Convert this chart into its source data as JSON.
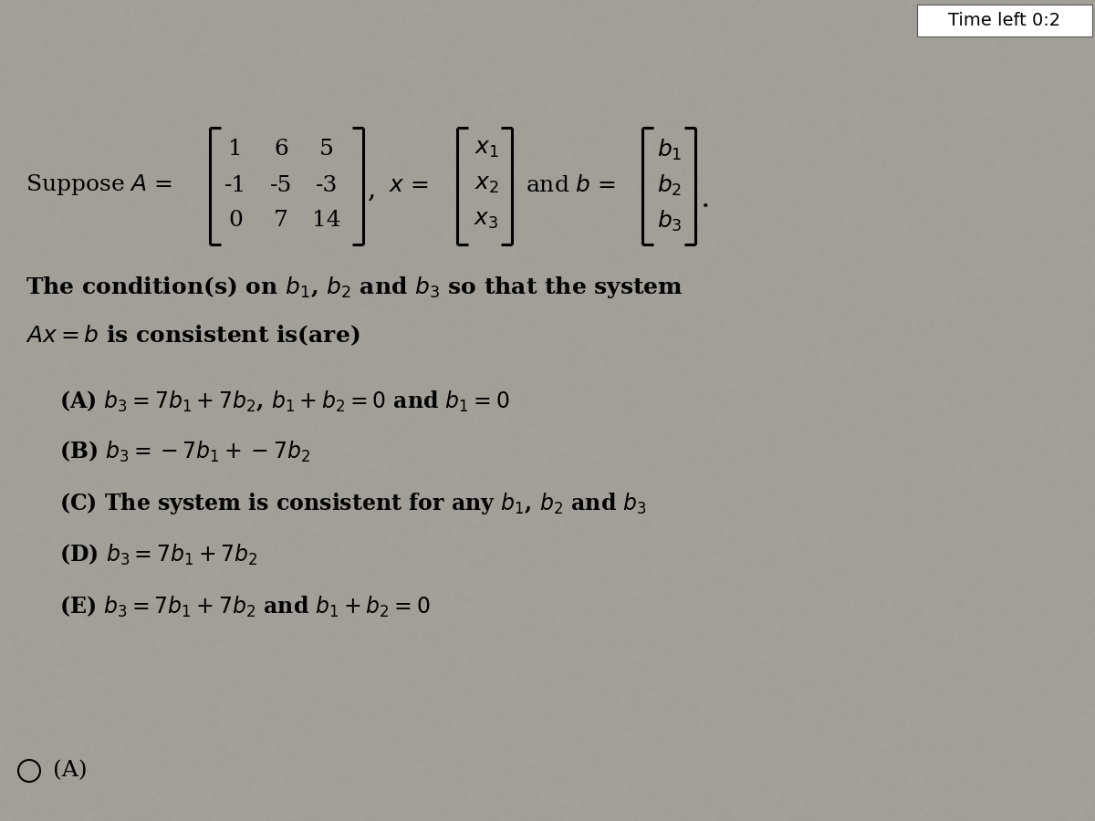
{
  "bg_color_base": "#b8b4aa",
  "text_color": "#000000",
  "title_box_color": "#ffffff",
  "title_text": "Time left 0:2",
  "fig_width": 12.0,
  "fig_height": 9.0,
  "matrix_A": [
    [
      1,
      6,
      5
    ],
    [
      -1,
      -5,
      -3
    ],
    [
      0,
      7,
      14
    ]
  ],
  "condition_text_line1": "The condition(s) on $b_1$, $b_2$ and $b_3$ so that the system",
  "condition_text_line2": "$Ax = b$ is consistent is(are)",
  "opt_A": "(A) $b_3 = 7b_1 + 7b_2$, $b_1 + b_2 = 0$ and $b_1 = 0$",
  "opt_B": "(B) $b_3 = -7b_1 + -7b_2$",
  "opt_C": "(C) The system is consistent for any $b_1$, $b_2$ and $b_3$",
  "opt_D": "(D) $b_3 = 7b_1 + 7b_2$",
  "opt_E": "(E) $b_3 = 7b_1 + 7b_2$ and $b_1 + b_2 = 0$",
  "font_size_main": 18,
  "font_size_options": 17,
  "font_size_timer": 14,
  "font_size_matrix": 18
}
